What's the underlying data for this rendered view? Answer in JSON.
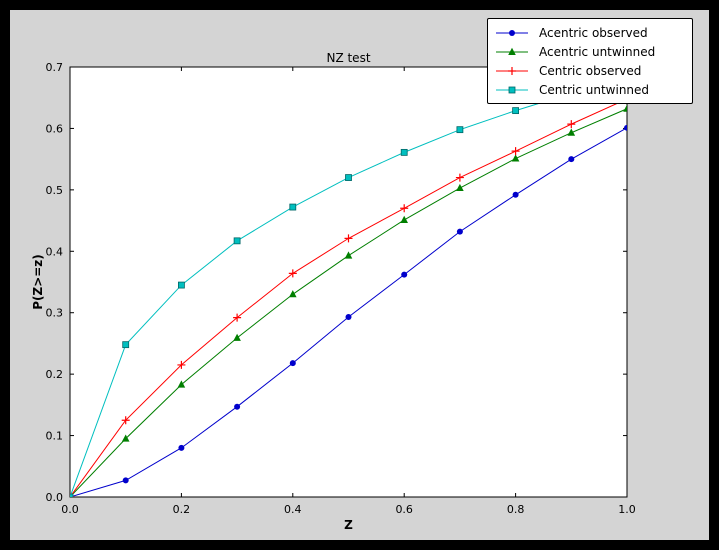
{
  "chart_data": {
    "type": "line",
    "title": "NZ test",
    "xlabel": "Z",
    "ylabel": "P(Z>=z)",
    "xlim": [
      0.0,
      1.0
    ],
    "ylim": [
      0.0,
      0.7
    ],
    "xticks": [
      0.0,
      0.2,
      0.4,
      0.6,
      0.8,
      1.0
    ],
    "xtick_labels": [
      "0.0",
      "0.2",
      "0.4",
      "0.6",
      "0.8",
      "1.0"
    ],
    "yticks": [
      0.0,
      0.1,
      0.2,
      0.3,
      0.4,
      0.5,
      0.6,
      0.7
    ],
    "ytick_labels": [
      "0.0",
      "0.1",
      "0.2",
      "0.3",
      "0.4",
      "0.5",
      "0.6",
      "0.7"
    ],
    "grid": false,
    "legend_position": "upper right",
    "x": [
      0.0,
      0.1,
      0.2,
      0.3,
      0.4,
      0.5,
      0.6,
      0.7,
      0.8,
      0.9,
      1.0
    ],
    "series": [
      {
        "name": "Acentric observed",
        "color": "#0000cc",
        "marker": "circle",
        "values": [
          0.0,
          0.027,
          0.08,
          0.147,
          0.218,
          0.293,
          0.362,
          0.432,
          0.492,
          0.55,
          0.601
        ]
      },
      {
        "name": "Acentric untwinned",
        "color": "#007f00",
        "marker": "triangle",
        "values": [
          0.0,
          0.095,
          0.183,
          0.259,
          0.33,
          0.393,
          0.451,
          0.503,
          0.551,
          0.593,
          0.632
        ]
      },
      {
        "name": "Centric observed",
        "color": "#ff0000",
        "marker": "plus",
        "values": [
          0.0,
          0.125,
          0.215,
          0.292,
          0.364,
          0.421,
          0.47,
          0.52,
          0.563,
          0.607,
          0.648
        ]
      },
      {
        "name": "Centric untwinned",
        "color": "#00bfbf",
        "marker": "square",
        "marker_edge": "#006666",
        "values": [
          0.0,
          0.248,
          0.345,
          0.417,
          0.472,
          0.52,
          0.561,
          0.598,
          0.629,
          0.657,
          0.683
        ]
      }
    ],
    "colors": {
      "figure_bg": "#d4d4d4",
      "plot_bg": "#ffffff",
      "frame": "#000000",
      "outer_bg": "#000000"
    }
  }
}
